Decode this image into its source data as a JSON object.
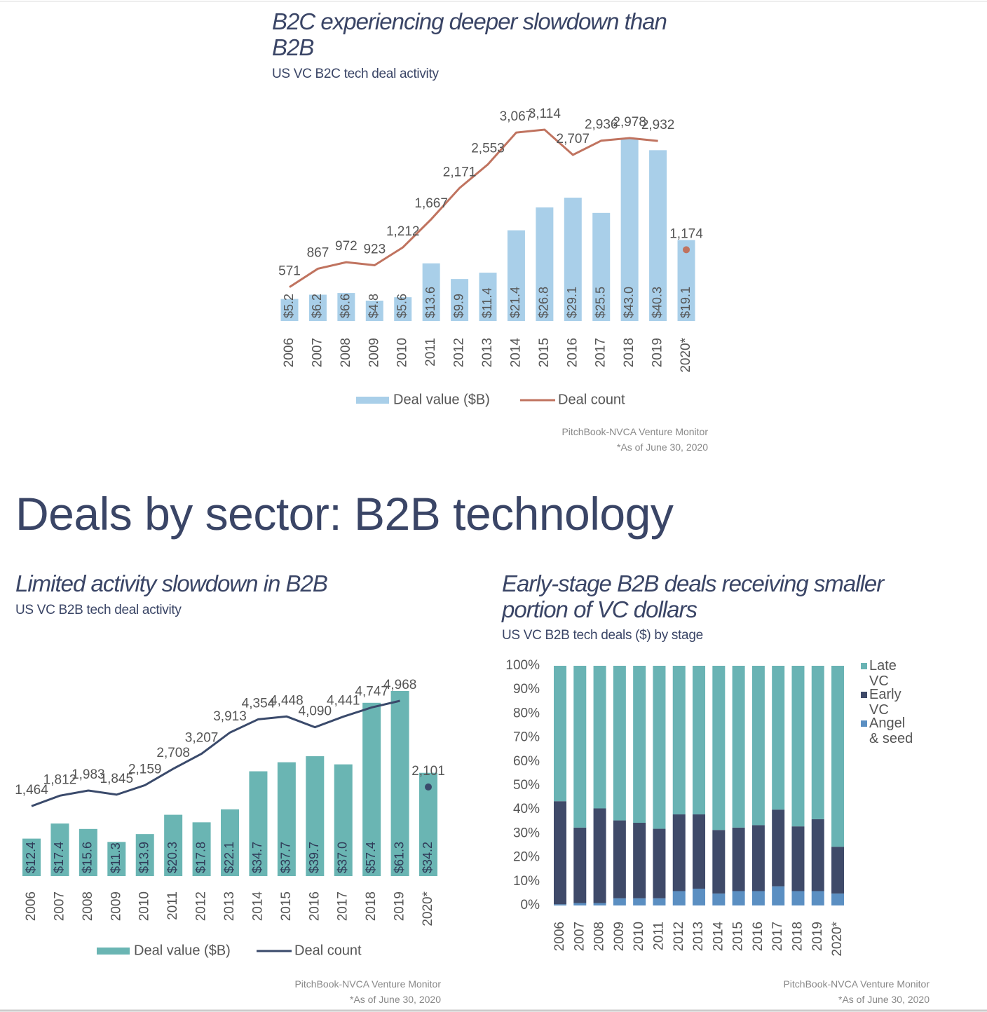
{
  "heading": "Deals by sector: B2B technology",
  "chart_data": [
    {
      "type": "combo",
      "title": "B2C experiencing deeper slowdown than B2B",
      "subtitle": "US VC B2C tech deal activity",
      "categories": [
        "2006",
        "2007",
        "2008",
        "2009",
        "2010",
        "2011",
        "2012",
        "2013",
        "2014",
        "2015",
        "2016",
        "2017",
        "2018",
        "2019",
        "2020*"
      ],
      "series": [
        {
          "name": "Deal value ($B)",
          "type": "bar",
          "color": "#a9cfe9",
          "values": [
            5.2,
            6.2,
            6.6,
            4.8,
            5.6,
            13.6,
            9.9,
            11.4,
            21.4,
            26.8,
            29.1,
            25.5,
            43.0,
            40.3,
            19.1
          ],
          "value_labels": [
            "$5.2",
            "$6.2",
            "$6.6",
            "$4.8",
            "$5.6",
            "$13.6",
            "$9.9",
            "$11.4",
            "$21.4",
            "$26.8",
            "$29.1",
            "$25.5",
            "$43.0",
            "$40.3",
            "$19.1"
          ]
        },
        {
          "name": "Deal count",
          "type": "line",
          "color": "#c0735f",
          "last_as_dot": true,
          "values": [
            571,
            867,
            972,
            923,
            1212,
            1667,
            2171,
            2553,
            3067,
            3114,
            2707,
            2936,
            2978,
            2932,
            1174
          ],
          "value_labels": [
            "571",
            "867",
            "972",
            "923",
            "1,212",
            "1,667",
            "2,171",
            "2,553",
            "3,067",
            "3,114",
            "2,707",
            "2,936",
            "2,978",
            "2,932",
            "1,174"
          ]
        }
      ],
      "source": "PitchBook-NVCA Venture Monitor",
      "note": "*As of June 30, 2020"
    },
    {
      "type": "combo",
      "title": "Limited activity slowdown in B2B",
      "subtitle": "US VC B2B tech deal activity",
      "categories": [
        "2006",
        "2007",
        "2008",
        "2009",
        "2010",
        "2011",
        "2012",
        "2013",
        "2014",
        "2015",
        "2016",
        "2017",
        "2018",
        "2019",
        "2020*"
      ],
      "series": [
        {
          "name": "Deal value ($B)",
          "type": "bar",
          "color": "#6ab5b3",
          "values": [
            12.4,
            17.4,
            15.6,
            11.3,
            13.9,
            20.3,
            17.8,
            22.1,
            34.7,
            37.7,
            39.7,
            37.0,
            57.4,
            61.3,
            34.2
          ],
          "value_labels": [
            "$12.4",
            "$17.4",
            "$15.6",
            "$11.3",
            "$13.9",
            "$20.3",
            "$17.8",
            "$22.1",
            "$34.7",
            "$37.7",
            "$39.7",
            "$37.0",
            "$57.4",
            "$61.3",
            "$34.2"
          ]
        },
        {
          "name": "Deal count",
          "type": "line",
          "color": "#3a4a6b",
          "last_as_dot": true,
          "values": [
            1464,
            1812,
            1983,
            1845,
            2159,
            2708,
            3207,
            3913,
            4354,
            4448,
            4090,
            4441,
            4747,
            4968,
            2101
          ],
          "value_labels": [
            "1,464",
            "1,812",
            "1,983",
            "1,845",
            "2,159",
            "2,708",
            "3,207",
            "3,913",
            "4,354",
            "4,448",
            "4,090",
            "4,441",
            "4,747",
            "4,968",
            "2,101"
          ]
        }
      ],
      "source": "PitchBook-NVCA Venture Monitor",
      "note": "*As of June 30, 2020"
    },
    {
      "type": "stacked-bar",
      "title": "Early-stage B2B deals receiving smaller portion of VC dollars",
      "subtitle": "US VC B2B tech deals ($) by stage",
      "categories": [
        "2006",
        "2007",
        "2008",
        "2009",
        "2010",
        "2011",
        "2012",
        "2013",
        "2014",
        "2015",
        "2016",
        "2017",
        "2018",
        "2019",
        "2020*"
      ],
      "series": [
        {
          "name": "Angel & seed",
          "color": "#5b8fc2",
          "values": [
            0.5,
            1,
            1,
            3,
            3,
            3,
            6,
            7,
            5,
            6,
            6,
            8,
            6,
            6,
            5
          ]
        },
        {
          "name": "Early VC",
          "color": "#3f4a69",
          "values": [
            43,
            31.5,
            39.5,
            32.5,
            31.5,
            29,
            32,
            31,
            26.5,
            26.5,
            27.5,
            32,
            27,
            30,
            19.5
          ]
        },
        {
          "name": "Late VC",
          "color": "#69b3b4",
          "values": [
            56.5,
            67.5,
            59.5,
            64.5,
            65.5,
            68,
            62,
            62,
            68.5,
            67.5,
            66.5,
            60,
            67,
            64,
            75.5
          ]
        }
      ],
      "ylim": [
        0,
        100
      ],
      "yticks": [
        {
          "value": 0,
          "label": "0%"
        },
        {
          "value": 10,
          "label": "10%"
        },
        {
          "value": 20,
          "label": "20%"
        },
        {
          "value": 30,
          "label": "30%"
        },
        {
          "value": 40,
          "label": "40%"
        },
        {
          "value": 50,
          "label": "50%"
        },
        {
          "value": 60,
          "label": "60%"
        },
        {
          "value": 70,
          "label": "70%"
        },
        {
          "value": 80,
          "label": "80%"
        },
        {
          "value": 90,
          "label": "90%"
        },
        {
          "value": 100,
          "label": "100%"
        }
      ],
      "source": "PitchBook-NVCA Venture Monitor",
      "note": "*As of June 30, 2020"
    }
  ]
}
